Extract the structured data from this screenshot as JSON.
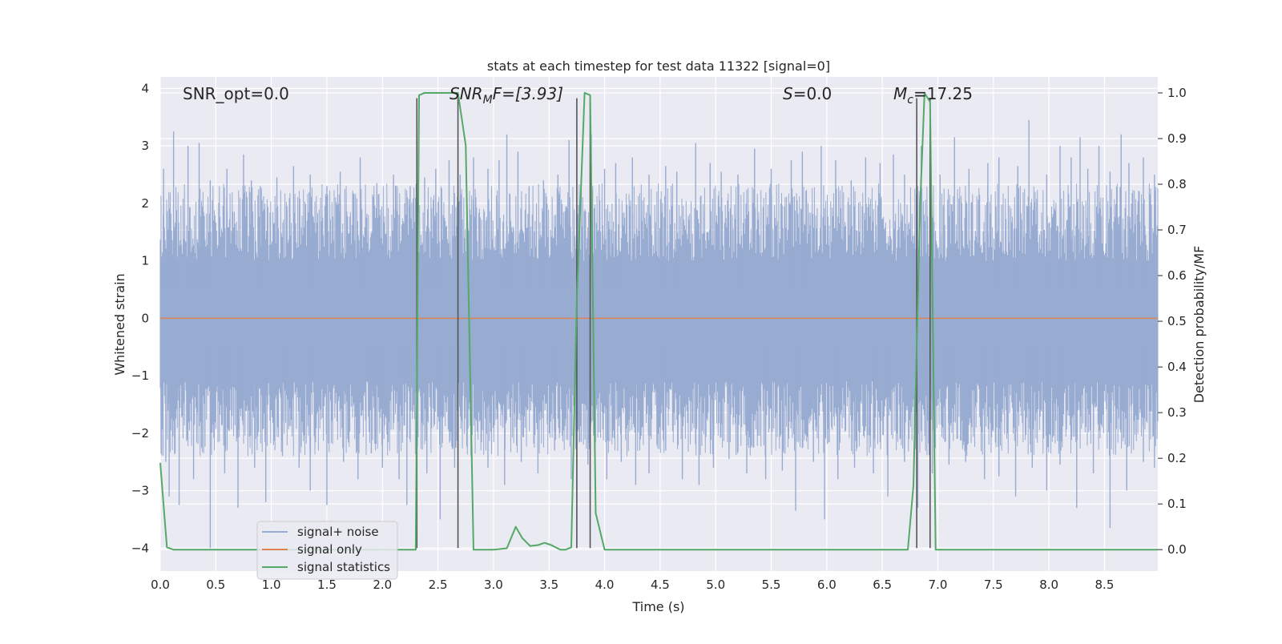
{
  "chart_data": {
    "type": "line",
    "title": "stats at each timestep for test data 11322 [signal=0]",
    "xlabel": "Time (s)",
    "ylabel": "Whitened strain",
    "y2label": "Detection probability/MF",
    "xlim": [
      0.0,
      8.98
    ],
    "ylim": [
      -4.4,
      4.2
    ],
    "y2lim": [
      -0.047,
      1.035
    ],
    "x_ticks": [
      0.0,
      0.5,
      1.0,
      1.5,
      2.0,
      2.5,
      3.0,
      3.5,
      4.0,
      4.5,
      5.0,
      5.5,
      6.0,
      6.5,
      7.0,
      7.5,
      8.0,
      8.5
    ],
    "x_tick_labels": [
      "0.0",
      "0.5",
      "1.0",
      "1.5",
      "2.0",
      "2.5",
      "3.0",
      "3.5",
      "4.0",
      "4.5",
      "5.0",
      "5.5",
      "6.0",
      "6.5",
      "7.0",
      "7.5",
      "8.0",
      "8.5"
    ],
    "y_ticks": [
      4,
      3,
      2,
      1,
      0,
      -1,
      -2,
      -3,
      -4
    ],
    "y_tick_labels": [
      "4",
      "3",
      "2",
      "1",
      "0",
      "−1",
      "−2",
      "−3",
      "−4"
    ],
    "y2_ticks": [
      1.0,
      0.9,
      0.8,
      0.7,
      0.6,
      0.5,
      0.4,
      0.3,
      0.2,
      0.1,
      0.0
    ],
    "y2_tick_labels": [
      "1.0",
      "0.9",
      "0.8",
      "0.7",
      "0.6",
      "0.5",
      "0.4",
      "0.3",
      "0.2",
      "0.1",
      "0.0"
    ],
    "grid": true,
    "legend_position": "lower-left",
    "annotations": {
      "snr_opt": "SNR_opt=0.0",
      "snr_mf_base": "SNR",
      "snr_mf_sub": "M",
      "snr_mf_rest": "F=[3.93]",
      "s_italic": "S",
      "s_rest": "=0.0",
      "mc_base": "M",
      "mc_sub": "c",
      "mc_rest": "=17.25"
    },
    "series": [
      {
        "name": "signal+ noise",
        "color": "#98abd1",
        "description_of_values": "whitened noisy strain, approx uniform noise between -2.5 and 2.5 with spikes up to about 3.3 and down to -4.0",
        "spikes_high": [
          [
            0.03,
            2.6
          ],
          [
            0.12,
            3.25
          ],
          [
            0.25,
            3.0
          ],
          [
            0.35,
            3.05
          ],
          [
            0.45,
            2.4
          ],
          [
            0.6,
            2.6
          ],
          [
            0.75,
            2.85
          ],
          [
            0.82,
            2.4
          ],
          [
            0.9,
            2.3
          ],
          [
            1.05,
            2.45
          ],
          [
            1.2,
            2.65
          ],
          [
            1.35,
            2.5
          ],
          [
            1.5,
            2.3
          ],
          [
            1.62,
            2.55
          ],
          [
            1.8,
            2.8
          ],
          [
            1.95,
            2.35
          ],
          [
            2.1,
            2.5
          ],
          [
            2.25,
            2.3
          ],
          [
            2.38,
            2.45
          ],
          [
            2.48,
            2.6
          ],
          [
            2.6,
            2.75
          ],
          [
            2.7,
            2.5
          ],
          [
            2.82,
            2.8
          ],
          [
            2.95,
            2.6
          ],
          [
            3.05,
            2.75
          ],
          [
            3.12,
            3.2
          ],
          [
            3.22,
            2.9
          ],
          [
            3.32,
            2.3
          ],
          [
            3.45,
            2.4
          ],
          [
            3.58,
            2.5
          ],
          [
            3.68,
            3.1
          ],
          [
            3.88,
            3.2
          ],
          [
            4.0,
            2.6
          ],
          [
            4.1,
            2.7
          ],
          [
            4.25,
            2.8
          ],
          [
            4.4,
            2.5
          ],
          [
            4.55,
            2.65
          ],
          [
            4.65,
            2.55
          ],
          [
            4.82,
            3.05
          ],
          [
            4.95,
            2.7
          ],
          [
            5.05,
            2.55
          ],
          [
            5.2,
            2.5
          ],
          [
            5.35,
            2.95
          ],
          [
            5.5,
            2.6
          ],
          [
            5.68,
            2.75
          ],
          [
            5.78,
            2.9
          ],
          [
            5.95,
            3.0
          ],
          [
            6.08,
            2.75
          ],
          [
            6.22,
            2.4
          ],
          [
            6.35,
            2.8
          ],
          [
            6.48,
            2.7
          ],
          [
            6.6,
            2.85
          ],
          [
            6.7,
            2.5
          ],
          [
            6.85,
            3.0
          ],
          [
            7.02,
            2.5
          ],
          [
            7.15,
            3.15
          ],
          [
            7.28,
            2.6
          ],
          [
            7.45,
            2.7
          ],
          [
            7.55,
            2.8
          ],
          [
            7.72,
            2.65
          ],
          [
            7.82,
            3.45
          ],
          [
            7.98,
            2.5
          ],
          [
            8.1,
            3.0
          ],
          [
            8.2,
            2.8
          ],
          [
            8.28,
            3.15
          ],
          [
            8.35,
            2.6
          ],
          [
            8.45,
            3.0
          ],
          [
            8.55,
            2.55
          ],
          [
            8.65,
            3.2
          ],
          [
            8.72,
            2.7
          ],
          [
            8.85,
            2.8
          ],
          [
            8.95,
            2.5
          ]
        ],
        "spikes_low": [
          [
            0.05,
            -2.5
          ],
          [
            0.08,
            -3.1
          ],
          [
            0.17,
            -3.25
          ],
          [
            0.3,
            -2.8
          ],
          [
            0.45,
            -4.0
          ],
          [
            0.58,
            -2.7
          ],
          [
            0.7,
            -3.3
          ],
          [
            0.85,
            -2.6
          ],
          [
            0.95,
            -3.2
          ],
          [
            1.1,
            -2.4
          ],
          [
            1.25,
            -2.6
          ],
          [
            1.35,
            -3.0
          ],
          [
            1.5,
            -3.25
          ],
          [
            1.65,
            -2.5
          ],
          [
            1.78,
            -2.8
          ],
          [
            1.9,
            -2.35
          ],
          [
            2.0,
            -2.6
          ],
          [
            2.15,
            -2.8
          ],
          [
            2.22,
            -3.25
          ],
          [
            2.4,
            -2.7
          ],
          [
            2.52,
            -3.5
          ],
          [
            2.65,
            -2.6
          ],
          [
            2.8,
            -2.4
          ],
          [
            2.95,
            -2.6
          ],
          [
            3.1,
            -2.9
          ],
          [
            3.25,
            -2.5
          ],
          [
            3.4,
            -2.7
          ],
          [
            3.55,
            -2.3
          ],
          [
            3.7,
            -2.8
          ],
          [
            3.85,
            -2.55
          ],
          [
            4.02,
            -2.8
          ],
          [
            4.15,
            -2.5
          ],
          [
            4.28,
            -2.9
          ],
          [
            4.4,
            -2.7
          ],
          [
            4.55,
            -2.3
          ],
          [
            4.7,
            -2.8
          ],
          [
            4.85,
            -2.9
          ],
          [
            4.98,
            -2.6
          ],
          [
            5.12,
            -2.45
          ],
          [
            5.28,
            -2.7
          ],
          [
            5.45,
            -2.8
          ],
          [
            5.6,
            -2.65
          ],
          [
            5.72,
            -3.35
          ],
          [
            5.88,
            -2.5
          ],
          [
            5.98,
            -3.5
          ],
          [
            6.1,
            -2.8
          ],
          [
            6.25,
            -2.6
          ],
          [
            6.42,
            -2.7
          ],
          [
            6.55,
            -3.1
          ],
          [
            6.7,
            -2.5
          ],
          [
            6.82,
            -3.3
          ],
          [
            6.95,
            -2.7
          ],
          [
            7.1,
            -2.55
          ],
          [
            7.25,
            -2.5
          ],
          [
            7.42,
            -2.8
          ],
          [
            7.55,
            -2.75
          ],
          [
            7.7,
            -3.1
          ],
          [
            7.85,
            -2.6
          ],
          [
            7.98,
            -3.0
          ],
          [
            8.1,
            -2.55
          ],
          [
            8.25,
            -3.3
          ],
          [
            8.4,
            -2.7
          ],
          [
            8.55,
            -3.65
          ],
          [
            8.7,
            -3.0
          ],
          [
            8.85,
            -2.5
          ],
          [
            8.95,
            -2.6
          ]
        ]
      },
      {
        "name": "signal only",
        "color": "#dd8452",
        "x": [
          0.0,
          8.98
        ],
        "values": [
          0.0,
          0.0
        ]
      },
      {
        "name": "signal statistics",
        "color": "#55a868",
        "axis": "right",
        "x": [
          0.0,
          0.06,
          0.12,
          0.5,
          1.0,
          1.5,
          2.0,
          2.3,
          2.33,
          2.38,
          2.5,
          2.62,
          2.68,
          2.75,
          2.82,
          3.0,
          3.12,
          3.2,
          3.26,
          3.33,
          3.4,
          3.46,
          3.52,
          3.6,
          3.65,
          3.7,
          3.75,
          3.82,
          3.87,
          3.92,
          4.0,
          4.5,
          5.0,
          5.5,
          6.0,
          6.5,
          6.73,
          6.78,
          6.84,
          6.88,
          6.93,
          6.98,
          7.02,
          7.1,
          7.5,
          8.0,
          8.5,
          8.98
        ],
        "values": [
          0.19,
          0.005,
          0.0,
          0.0,
          0.0,
          0.0,
          0.0,
          0.0,
          0.995,
          1.0,
          1.0,
          1.0,
          1.0,
          0.885,
          0.0,
          0.0,
          0.003,
          0.05,
          0.025,
          0.008,
          0.01,
          0.015,
          0.01,
          0.0,
          0.0,
          0.005,
          0.55,
          1.0,
          0.995,
          0.08,
          0.0,
          0.0,
          0.0,
          0.0,
          0.0,
          0.0,
          0.0,
          0.14,
          0.75,
          1.0,
          0.98,
          0.0,
          0.0,
          0.0,
          0.0,
          0.0,
          0.0,
          0.0
        ]
      }
    ],
    "vertical_markers": [
      2.31,
      2.68,
      3.75,
      3.87,
      6.81,
      6.93
    ],
    "marker_color": "#555555",
    "marker_range": [
      -4.0,
      3.83
    ]
  }
}
